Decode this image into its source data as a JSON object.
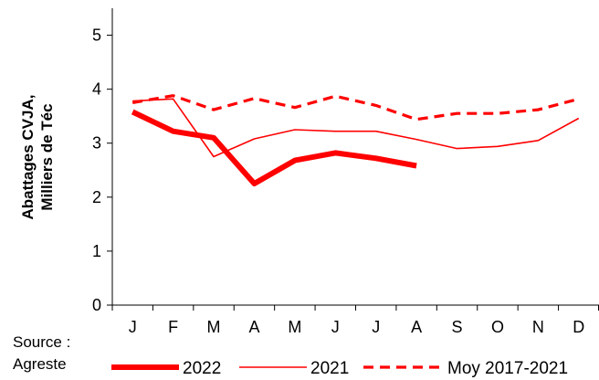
{
  "chart_data": {
    "type": "line",
    "categories": [
      "J",
      "F",
      "M",
      "A",
      "M",
      "J",
      "J",
      "A",
      "S",
      "O",
      "N",
      "D"
    ],
    "ylabel": [
      "Abattages CVJA,",
      "Milliers de Téc"
    ],
    "ylim": [
      0,
      5.5
    ],
    "yticks": [
      0,
      1,
      2,
      3,
      4,
      5
    ],
    "grid": false,
    "legend_position": "bottom",
    "series": [
      {
        "name": "2022",
        "color": "#ff0000",
        "style": "solid-thick",
        "values": [
          3.58,
          3.22,
          3.1,
          2.25,
          2.68,
          2.82,
          2.72,
          2.58,
          null,
          null,
          null,
          null
        ]
      },
      {
        "name": "2021",
        "color": "#ff0000",
        "style": "solid-thin",
        "values": [
          3.78,
          3.82,
          2.75,
          3.08,
          3.25,
          3.22,
          3.22,
          3.07,
          2.9,
          2.94,
          3.05,
          3.46
        ]
      },
      {
        "name": "Moy 2017-2021",
        "color": "#ff0000",
        "style": "dashed",
        "values": [
          3.75,
          3.88,
          3.62,
          3.83,
          3.66,
          3.87,
          3.7,
          3.44,
          3.55,
          3.55,
          3.62,
          3.82
        ]
      }
    ]
  },
  "source": {
    "line1": "Source :",
    "line2": "Agreste"
  }
}
